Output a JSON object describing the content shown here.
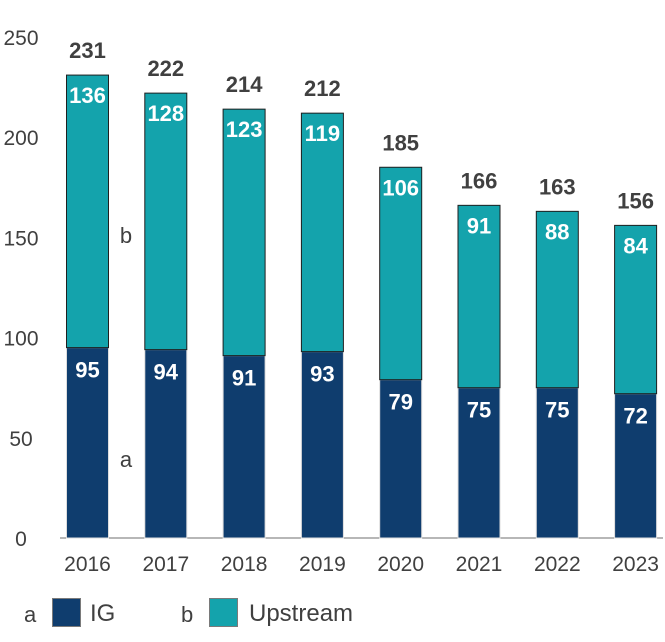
{
  "chart_data": {
    "type": "bar",
    "stacked": true,
    "categories": [
      "2016",
      "2017",
      "2018",
      "2019",
      "2020",
      "2021",
      "2022",
      "2023"
    ],
    "series": [
      {
        "name": "IG",
        "letter": "a",
        "color": "#0f3d6e",
        "values": [
          95,
          94,
          91,
          93,
          79,
          75,
          75,
          72
        ]
      },
      {
        "name": "Upstream",
        "letter": "b",
        "color": "#14a3ac",
        "values": [
          136,
          128,
          123,
          119,
          106,
          91,
          88,
          84
        ]
      }
    ],
    "totals": [
      231,
      222,
      214,
      212,
      185,
      166,
      163,
      156
    ],
    "y_ticks": [
      0,
      50,
      100,
      150,
      200,
      250
    ],
    "ylim": [
      0,
      250
    ],
    "title": "",
    "xlabel": "",
    "ylabel": "",
    "annotations": [
      {
        "text": "b",
        "series": "Upstream"
      },
      {
        "text": "a",
        "series": "IG"
      }
    ],
    "legend_position": "bottom-left"
  },
  "legend": {
    "items": [
      {
        "letter": "a",
        "label": "IG",
        "color": "#0f3d6e"
      },
      {
        "letter": "b",
        "label": "Upstream",
        "color": "#14a3ac"
      }
    ]
  }
}
